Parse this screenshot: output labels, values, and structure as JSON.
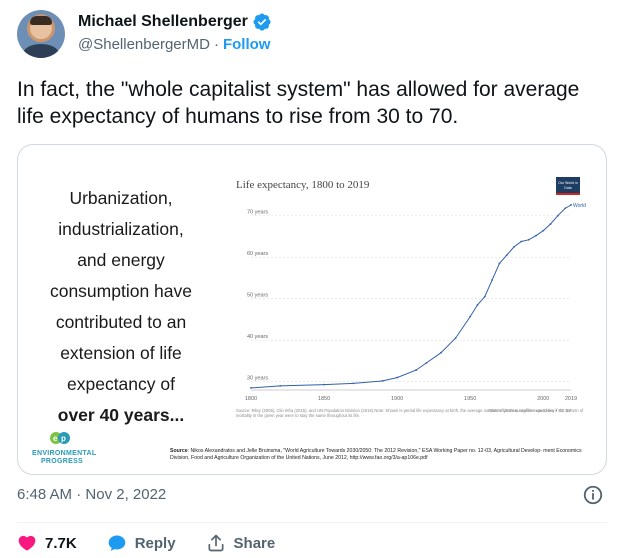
{
  "author": {
    "name": "Michael Shellenberger",
    "handle": "@ShellenbergerMD",
    "separator": "·",
    "follow_label": "Follow",
    "verified": true
  },
  "tweet": {
    "text": "In fact, the \"whole capitalist system\" has allowed for average life expectancy of humans to rise from 30 to 70."
  },
  "media": {
    "quote_lines": [
      "Urbanization,",
      "industrialization,",
      "and energy",
      "consumption have",
      "contributed to an",
      "extension of life",
      "expectancy of"
    ],
    "quote_emphasis": "over 40 years...",
    "org_logo_text": [
      "ENVIRONMENTAL",
      "PROGRESS"
    ],
    "badge_text": "Our World in Data",
    "chart_note": "Source: Riley (2005), Clio Infra (2015), and UN Population Division (2019)\nNote: Shown is period life expectancy at birth, the average number of years a newborn would live if the pattern of mortality in the given year were to stay the same throughout its life.",
    "chart_note_right": "OurWorldInData.org/life-expectancy • CC BY",
    "source_label": "Source",
    "source_text": ": Nikos Alexandratos and Jelle Bruinsma, \"World Agriculture Towards 2030/2050: The 2012 Revision,\" ESA Working Paper no. 12-03, Agricultural Develop- ment Economics Division, Food and Agriculture Organization of the United Nations, June 2012, http://www.fao.org/3/a-ap106e.pdf"
  },
  "chart_data": {
    "type": "line",
    "title": "Life expectancy, 1800 to 2019",
    "xlabel": "",
    "ylabel": "",
    "xlim": [
      1800,
      2019
    ],
    "ylim": [
      28,
      75
    ],
    "xticks": [
      "1800",
      "1850",
      "1900",
      "1950",
      "2000",
      "2019"
    ],
    "yticks": [
      "30 years",
      "40 years",
      "50 years",
      "60 years",
      "70 years"
    ],
    "series": [
      {
        "name": "World",
        "color": "#3360a9",
        "x": [
          1800,
          1820,
          1850,
          1870,
          1890,
          1900,
          1913,
          1920,
          1930,
          1940,
          1950,
          1955,
          1960,
          1965,
          1970,
          1975,
          1980,
          1985,
          1990,
          1995,
          2000,
          2005,
          2010,
          2015,
          2019
        ],
        "y": [
          28.5,
          29.0,
          29.3,
          29.6,
          30.2,
          31.0,
          32.8,
          34.5,
          37.0,
          40.5,
          45.7,
          48.5,
          50.5,
          54.5,
          58.5,
          60.5,
          62.5,
          63.8,
          64.2,
          65.2,
          66.4,
          68.0,
          70.0,
          71.8,
          72.6
        ]
      }
    ]
  },
  "meta": {
    "time": "6:48 AM",
    "separator": "·",
    "date": "Nov 2, 2022"
  },
  "actions": {
    "likes": "7.7K",
    "reply_label": "Reply",
    "share_label": "Share"
  },
  "colors": {
    "accent": "#1d9bf0",
    "like": "#f91880",
    "text_secondary": "#536471"
  }
}
